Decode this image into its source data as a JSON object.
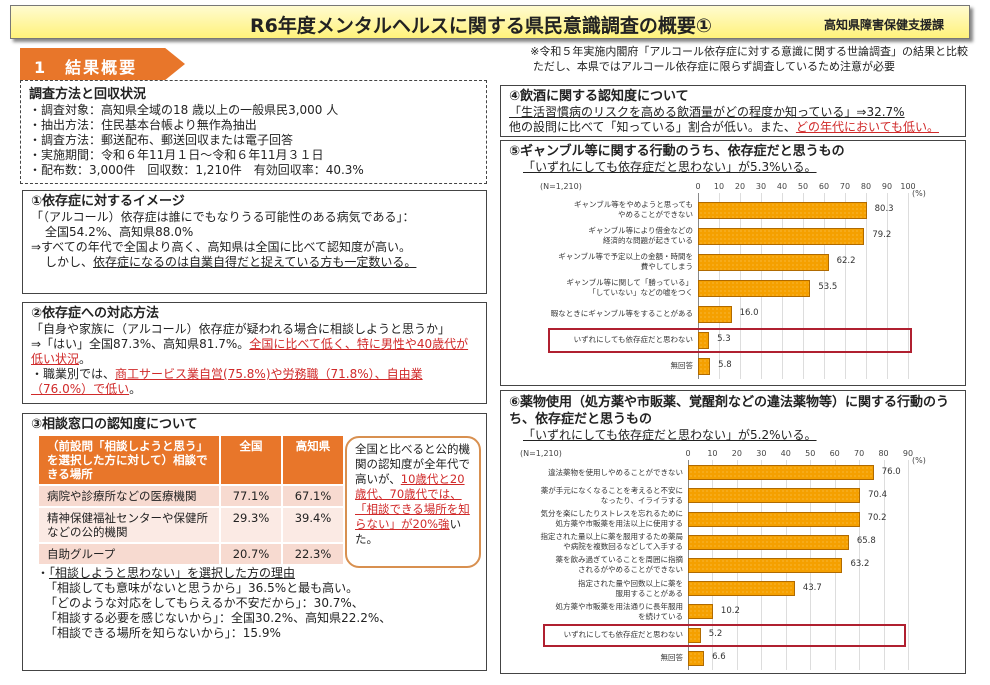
{
  "header": {
    "title": "R6年度メンタルヘルスに関する県民意識調査の概要①",
    "department": "高知県障害保健支援課"
  },
  "section_tab": "1　結果概要",
  "note": [
    "※令和５年実施内閣府「アルコール依存症に対する意識に関する世論調査」の結果と比較",
    "ただし、本県ではアルコール依存症に限らず調査しているため注意が必要"
  ],
  "method": {
    "heading": "調査方法と回収状況",
    "items": [
      "・調査対象：高知県全域の18 歳以上の一般県民3,000 人",
      "・抽出方法：住民基本台帳より無作為抽出",
      "・調査方法：郵送配布、郵送回収または電子回答",
      "・実施期間：令和６年11月１日～令和６年11月３１日",
      "・配布数：3,000件　回収数：1,210件　有効回収率：40.3%"
    ]
  },
  "s1": {
    "heading": "①依存症に対するイメージ",
    "l1": "「（アルコール）依存症は誰にでもなりうる可能性のある病気である」：",
    "l2": "全国54.2%、高知県88.0%",
    "l3": "⇒すべての年代で全国より高く、高知県は全国に比べて認知度が高い。",
    "l4a": "しかし、",
    "l4b": "依存症になるのは自業自得だと捉えている方も一定数いる。"
  },
  "s2": {
    "heading": "②依存症への対応方法",
    "l1": "「自身や家族に（アルコール）依存症が疑われる場合に相談しようと思うか」",
    "l2a": "⇒「はい」全国87.3%、高知県81.7%。",
    "l2b": "全国に比べて低く、特に男性や40歳代が低い状況",
    "l2c": "。",
    "l3a": "・職業別では、",
    "l3b": "商工サービス業自営(75.8%)や労務職（71.8%）、自由業（76.0%）で低い",
    "l3c": "。"
  },
  "s3": {
    "heading": "③相談窓口の認知度について",
    "table": {
      "headers": [
        "（前設問「相談しようと思う」を選択した方に対して）相談できる場所",
        "全国",
        "高知県"
      ],
      "rows": [
        [
          "病院や診療所などの医療機関",
          "77.1%",
          "67.1%"
        ],
        [
          "精神保健福祉センターや保健所などの公的機関",
          "29.3%",
          "39.4%"
        ],
        [
          "自助グループ",
          "20.7%",
          "22.3%"
        ]
      ]
    },
    "bubble_a": "全国と比べると公的機関の認知度が全年代で高いが、",
    "bubble_b": "10歳代と20歳代、70歳代では、「相談できる場所を知らない」が20%強",
    "bubble_c": "いた。",
    "reason_head": "「相談しようと思わない」を選択した方の理由",
    "reasons": [
      "「相談しても意味がないと思うから」36.5%と最も高い。",
      "「どのような対応をしてもらえるか不安だから」：30.7%、",
      "「相談する必要を感じないから」：全国30.2%、高知県22.2%、",
      "「相談できる場所を知らないから」：15.9%"
    ]
  },
  "s4": {
    "heading": "④飲酒に関する認知度について",
    "l1": "「生活習慣病のリスクを高める飲酒量がどの程度か知っている」⇒32.7%",
    "l2a": "他の設問に比べて「知っている」割合が低い。また、",
    "l2b": "どの年代においても低い。"
  },
  "s5": {
    "heading": "⑤ギャンブル等に関する行動のうち、依存症だと思うもの",
    "sub": "「いずれにしても依存症だと思わない」が5.3%いる。"
  },
  "s6": {
    "heading": "⑥薬物使用（処方薬や市販薬、覚醒剤などの違法薬物等）に関する行動のうち、依存症だと思うもの",
    "sub": "「いずれにしても依存症だと思わない」が5.2%いる。"
  },
  "chart_data": [
    {
      "type": "bar",
      "orientation": "horizontal",
      "n_label": "(N=1,210)",
      "unit": "(%)",
      "xlim": [
        0,
        100
      ],
      "ticks": [
        0,
        10,
        20,
        30,
        40,
        50,
        60,
        70,
        80,
        90,
        100
      ],
      "grid": true,
      "bar_color": "#f5a000",
      "highlight": "いずれにしても依存症だと思わない",
      "categories": [
        "ギャンブル等をやめようと思っても\nやめることができない",
        "ギャンブル等により借金などの\n経済的な問題が起きている",
        "ギャンブル等で予定以上の金額・時間を\n費やしてしまう",
        "ギャンブル等に関して「勝っている」\n「していない」などの嘘をつく",
        "暇なときにギャンブル等をすることがある",
        "いずれにしても依存症だと思わない",
        "無回答"
      ],
      "values": [
        80.3,
        79.2,
        62.2,
        53.5,
        16.0,
        5.3,
        5.8
      ],
      "labels": [
        "80.3",
        "79.2",
        "62.2",
        "53.5",
        "16.0",
        "5.3",
        "5.8"
      ]
    },
    {
      "type": "bar",
      "orientation": "horizontal",
      "n_label": "(N=1,210)",
      "unit": "(%)",
      "xlim": [
        0,
        90
      ],
      "ticks": [
        0,
        10,
        20,
        30,
        40,
        50,
        60,
        70,
        80,
        90
      ],
      "grid": true,
      "bar_color": "#f5a000",
      "highlight": "いずれにしても依存症だと思わない",
      "categories": [
        "違法薬物を使用しやめることができない",
        "薬が手元になくなることを考えると不安に\nなったり、イライラする",
        "気分を楽にしたりストレスを忘れるために\n処方薬や市販薬を用法以上に使用する",
        "指定された量以上に薬を服用するため薬局\nや病院を複数回るなどして入手する",
        "薬を飲み過ぎていることを周囲に指摘\nされるがやめることができない",
        "指定された量や回数以上に薬を\n服用することがある",
        "処方薬や市販薬を用法通りに長年服用\nを続けている",
        "いずれにしても依存症だと思わない",
        "無回答"
      ],
      "values": [
        76.0,
        70.4,
        70.2,
        65.8,
        63.2,
        43.7,
        10.2,
        5.2,
        6.6
      ],
      "labels": [
        "76.0",
        "70.4",
        "70.2",
        "65.8",
        "63.2",
        "43.7",
        "10.2",
        "5.2",
        "6.6"
      ]
    }
  ]
}
